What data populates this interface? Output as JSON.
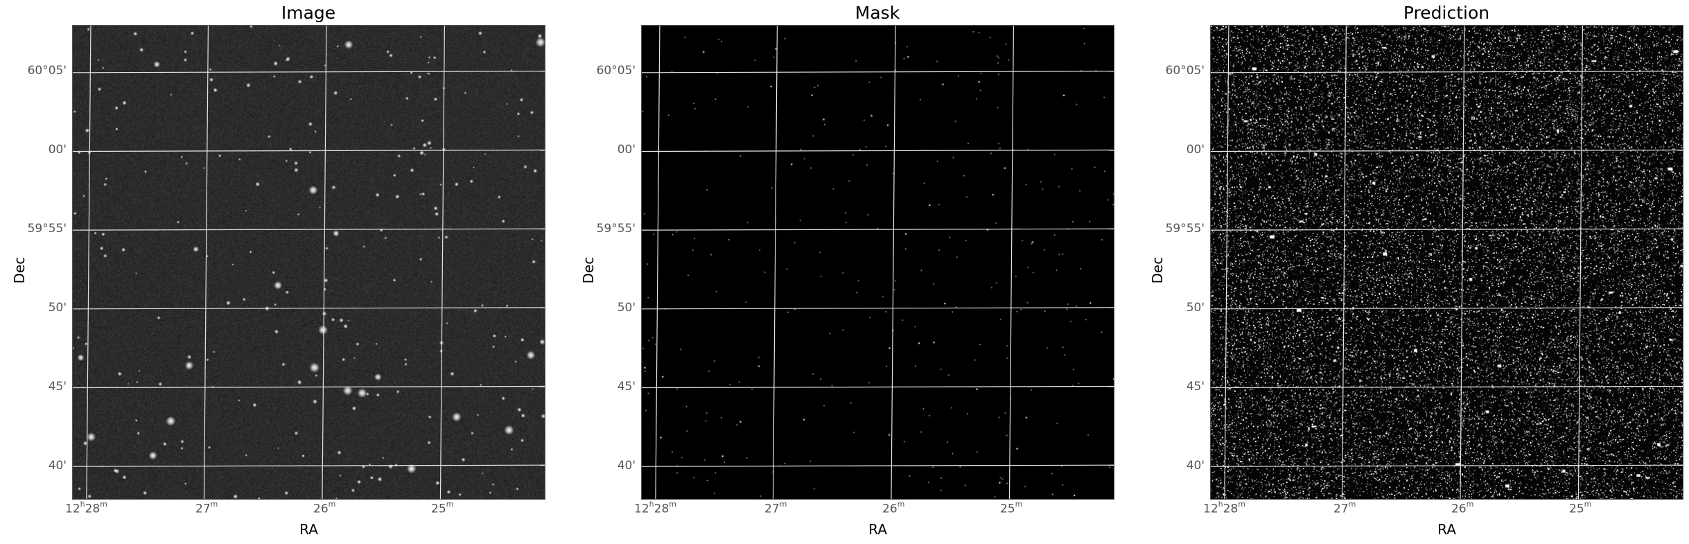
{
  "panels": [
    {
      "id": "image",
      "title": "Image",
      "xlabel": "RA",
      "ylabel": "Dec",
      "yticks": [
        "60°05'",
        "00'",
        "59°55'",
        "50'",
        "45'",
        "40'"
      ],
      "xticks": [
        {
          "main": "12",
          "sup1": "h",
          "mid": "28",
          "sup2": "m"
        },
        {
          "main": "27",
          "sup1": "",
          "mid": "",
          "sup2": "m"
        },
        {
          "main": "26",
          "sup1": "",
          "mid": "",
          "sup2": "m"
        },
        {
          "main": "25",
          "sup1": "",
          "mid": "",
          "sup2": "m"
        }
      ],
      "style": "starfield"
    },
    {
      "id": "mask",
      "title": "Mask",
      "xlabel": "RA",
      "ylabel": "Dec",
      "yticks": [
        "60°05'",
        "00'",
        "59°55'",
        "50'",
        "45'",
        "40'"
      ],
      "xticks": [
        {
          "main": "12",
          "sup1": "h",
          "mid": "28",
          "sup2": "m"
        },
        {
          "main": "27",
          "sup1": "",
          "mid": "",
          "sup2": "m"
        },
        {
          "main": "26",
          "sup1": "",
          "mid": "",
          "sup2": "m"
        },
        {
          "main": "25",
          "sup1": "",
          "mid": "",
          "sup2": "m"
        }
      ],
      "style": "mask"
    },
    {
      "id": "prediction",
      "title": "Prediction",
      "xlabel": "RA",
      "ylabel": "Dec",
      "yticks": [
        "60°05'",
        "00'",
        "59°55'",
        "50'",
        "45'",
        "40'"
      ],
      "xticks": [
        {
          "main": "12",
          "sup1": "h",
          "mid": "28",
          "sup2": "m"
        },
        {
          "main": "27",
          "sup1": "",
          "mid": "",
          "sup2": "m"
        },
        {
          "main": "26",
          "sup1": "",
          "mid": "",
          "sup2": "m"
        },
        {
          "main": "25",
          "sup1": "",
          "mid": "",
          "sup2": "m"
        }
      ],
      "style": "prediction"
    }
  ],
  "colors": {
    "image_background": "#2a2a2a",
    "mask_background": "#000000",
    "prediction_background": "#050505",
    "gridline": "#e6e6e6",
    "tick_text": "#555555"
  }
}
